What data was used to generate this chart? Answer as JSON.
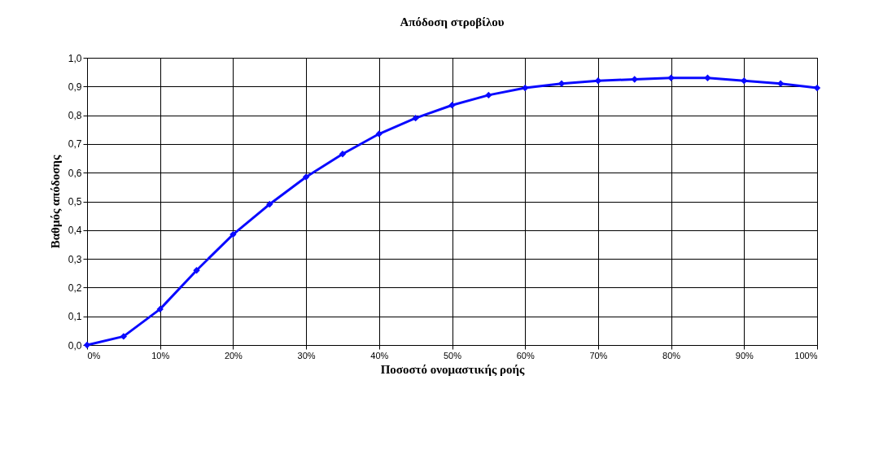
{
  "chart_data": {
    "type": "line",
    "title": "Απόδοση στροβίλου",
    "xlabel": "Ποσοστό ονομαστικής ροής",
    "ylabel": "Βαθμός απόδοσης",
    "x": [
      0,
      5,
      10,
      15,
      20,
      25,
      30,
      35,
      40,
      45,
      50,
      55,
      60,
      65,
      70,
      75,
      80,
      85,
      90,
      95,
      100
    ],
    "series": [
      {
        "color": "#0a0aff",
        "values": [
          0.0,
          0.03,
          0.125,
          0.26,
          0.385,
          0.49,
          0.585,
          0.665,
          0.735,
          0.79,
          0.835,
          0.87,
          0.895,
          0.91,
          0.92,
          0.925,
          0.93,
          0.93,
          0.92,
          0.91,
          0.895
        ]
      }
    ],
    "xlim": [
      0,
      100
    ],
    "xticks": [
      {
        "value": 0,
        "label": "0%"
      },
      {
        "value": 10,
        "label": "10%"
      },
      {
        "value": 20,
        "label": "20%"
      },
      {
        "value": 30,
        "label": "30%"
      },
      {
        "value": 40,
        "label": "40%"
      },
      {
        "value": 50,
        "label": "50%"
      },
      {
        "value": 60,
        "label": "60%"
      },
      {
        "value": 70,
        "label": "70%"
      },
      {
        "value": 80,
        "label": "80%"
      },
      {
        "value": 90,
        "label": "90%"
      },
      {
        "value": 100,
        "label": "100%"
      }
    ],
    "ylim": [
      0,
      1
    ],
    "yticks": [
      {
        "value": 0,
        "label": "0,0"
      },
      {
        "value": 0.1,
        "label": "0,1"
      },
      {
        "value": 0.2,
        "label": "0,2"
      },
      {
        "value": 0.3,
        "label": "0,3"
      },
      {
        "value": 0.4,
        "label": "0,4"
      },
      {
        "value": 0.5,
        "label": "0,5"
      },
      {
        "value": 0.6,
        "label": "0,6"
      },
      {
        "value": 0.7,
        "label": "0,7"
      },
      {
        "value": 0.8,
        "label": "0,8"
      },
      {
        "value": 0.9,
        "label": "0,9"
      },
      {
        "value": 1,
        "label": "1,0"
      }
    ],
    "grid": true,
    "marker": "diamond",
    "line_style": "solid"
  }
}
